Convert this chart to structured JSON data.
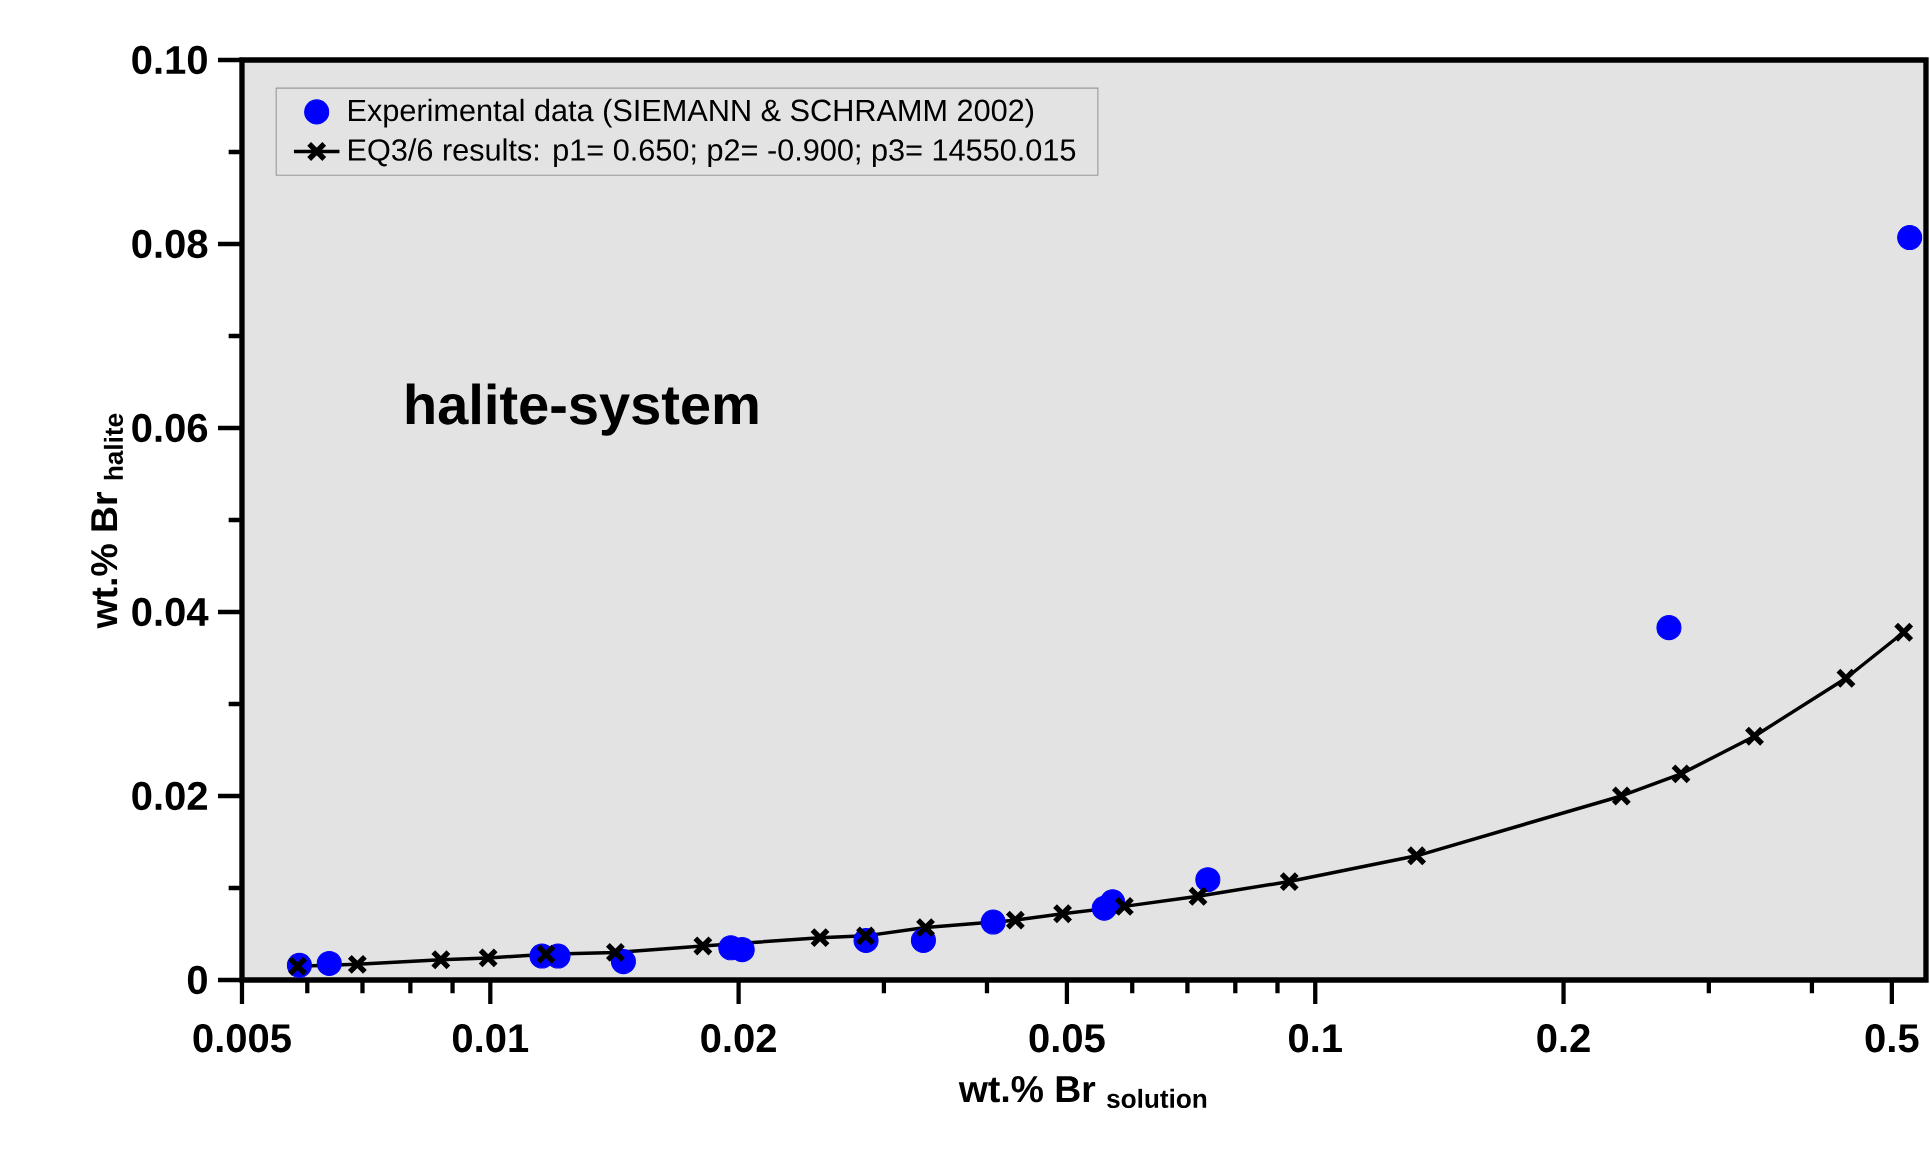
{
  "chart_data": {
    "type": "scatter",
    "xlabel": "wt.% Br $_{solution}$",
    "ylabel": "wt.% Br $_{halite}$",
    "log": "x",
    "legend": "top left",
    "xlim": [
      0.005,
      0.55
    ],
    "ylim": [
      0,
      0.1
    ],
    "xticks": [
      0.005,
      {
        "value": 0.006,
        "label": null
      },
      {
        "value": 0.007,
        "label": null
      },
      {
        "value": 0.008,
        "label": null
      },
      {
        "value": 0.009,
        "label": null
      },
      0.01,
      0.02,
      {
        "value": 0.03,
        "label": null
      },
      {
        "value": 0.04,
        "label": null
      },
      0.05,
      {
        "value": 0.06,
        "label": null
      },
      {
        "value": 0.07,
        "label": null
      },
      {
        "value": 0.08,
        "label": null
      },
      {
        "value": 0.09,
        "label": null
      },
      0.1,
      0.2,
      {
        "value": 0.3,
        "label": null
      },
      {
        "value": 0.4,
        "label": null
      },
      0.5
    ],
    "yticks": [
      0,
      {
        "value": 0.01,
        "label": null
      },
      0.02,
      {
        "value": 0.03,
        "label": null
      },
      0.04,
      {
        "value": 0.05,
        "label": null
      },
      0.06,
      {
        "value": 0.07,
        "label": null
      },
      0.08,
      {
        "value": 0.09,
        "label": null
      },
      {
        "value": 0.1,
        "label": "0.10"
      }
    ],
    "annotations": [
      "halite-system"
    ],
    "series": [
      {
        "name": "Experimental data (SIEMANN & SCHRAMM 2002)",
        "marker": "circle",
        "color": "#0000ff",
        "x": [
          0.00587,
          0.00638,
          0.01155,
          0.01208,
          0.0145,
          0.01957,
          0.0202,
          0.02854,
          0.0335,
          0.0407,
          0.0555,
          0.0568,
          0.0741,
          0.2684,
          0.5255
        ],
        "values": [
          0.0016,
          0.0018,
          0.0026,
          0.0026,
          0.002,
          0.0035,
          0.0033,
          0.0043,
          0.0043,
          0.0063,
          0.0078,
          0.0085,
          0.0109,
          0.0383,
          0.0807
        ]
      },
      {
        "name": "EQ3/6 results: p1= 0.650; p2= -0.900; p3= 14550.015",
        "type": "line",
        "marker": "cross",
        "color": "#000000",
        "x": [
          0.00584,
          0.0069,
          0.00871,
          0.00994,
          0.01168,
          0.01418,
          0.0181,
          0.0251,
          0.0285,
          0.0337,
          0.0433,
          0.0494,
          0.0587,
          0.0721,
          0.093,
          0.1327,
          0.235,
          0.2776,
          0.3408,
          0.4399,
          0.5168
        ],
        "values": [
          0.0015,
          0.0017,
          0.0022,
          0.0024,
          0.0028,
          0.003,
          0.0037,
          0.0046,
          0.0048,
          0.0057,
          0.0065,
          0.0072,
          0.008,
          0.0091,
          0.0107,
          0.0135,
          0.02,
          0.0224,
          0.0265,
          0.0328,
          0.0378
        ]
      }
    ]
  }
}
